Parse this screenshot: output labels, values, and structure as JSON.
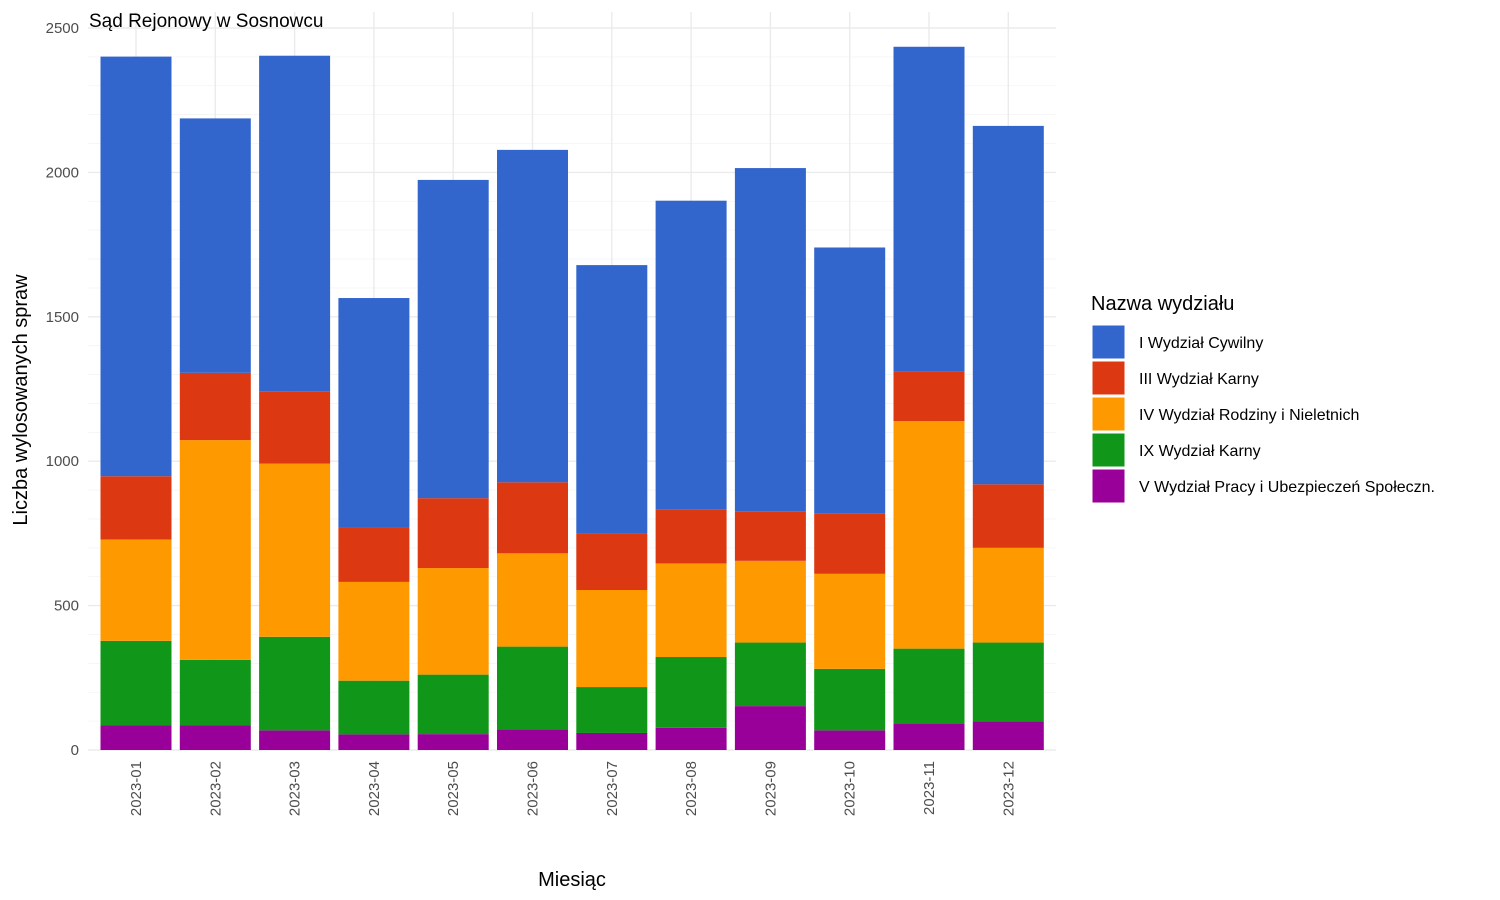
{
  "chart_data": {
    "type": "bar",
    "stacked": true,
    "title": "Sąd Rejonowy w Sosnowcu",
    "xlabel": "Miesiąc",
    "ylabel": "Liczba wylosowanych spraw",
    "ylim": [
      0,
      2500
    ],
    "yticks": [
      "0",
      "500",
      "1000",
      "1500",
      "2000",
      "2500"
    ],
    "grid": true,
    "legend_title": "Nazwa wydziału",
    "legend_position": "right",
    "categories": [
      "2023-01",
      "2023-02",
      "2023-03",
      "2023-04",
      "2023-05",
      "2023-06",
      "2023-07",
      "2023-08",
      "2023-09",
      "2023-10",
      "2023-11",
      "2023-12"
    ],
    "series": [
      {
        "name": "V Wydział Pracy i Ubezpieczeń Społeczn.",
        "color": "#990099",
        "values": [
          85,
          85,
          68,
          54,
          55,
          72,
          59,
          77,
          152,
          68,
          90,
          99
        ]
      },
      {
        "name": "IX Wydział Karny",
        "color": "#109618",
        "values": [
          293,
          227,
          324,
          186,
          206,
          286,
          159,
          245,
          220,
          213,
          261,
          273
        ]
      },
      {
        "name": "IV Wydział Rodziny i Nieletnich",
        "color": "#FF9900",
        "values": [
          351,
          761,
          600,
          342,
          369,
          323,
          336,
          324,
          283,
          329,
          788,
          328
        ]
      },
      {
        "name": "III Wydział Karny",
        "color": "#DC3912",
        "values": [
          219,
          233,
          250,
          190,
          242,
          246,
          196,
          188,
          170,
          210,
          172,
          220
        ]
      },
      {
        "name": "I Wydział Cywilny",
        "color": "#3366CC",
        "values": [
          1453,
          881,
          1162,
          793,
          1102,
          1151,
          929,
          1068,
          1190,
          920,
          1124,
          1241
        ]
      }
    ],
    "legend_order": [
      "I Wydział Cywilny",
      "III Wydział Karny",
      "IV Wydział Rodziny i Nieletnich",
      "IX Wydział Karny",
      "V Wydział Pracy i Ubezpieczeń Społeczn."
    ]
  }
}
